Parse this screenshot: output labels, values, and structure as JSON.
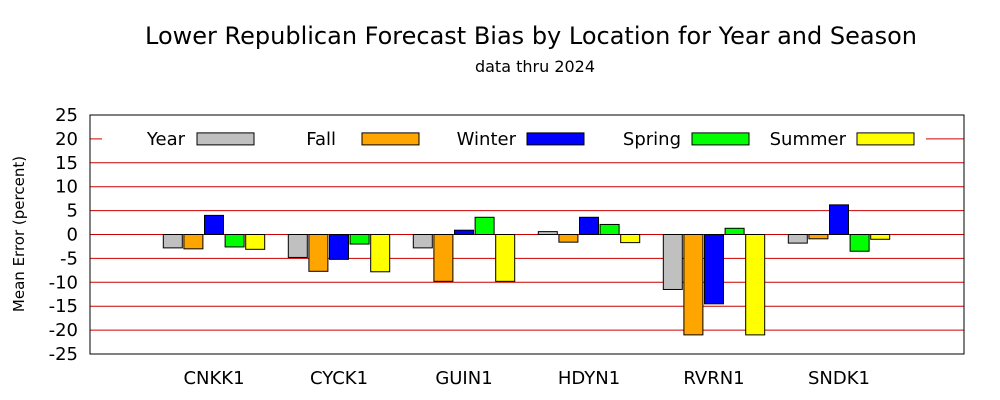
{
  "chart_data": {
    "type": "bar",
    "title": "Lower Republican Forecast Bias by Location for Year and Season",
    "subtitle": "data thru 2024",
    "ylabel": "Mean Error (percent)",
    "xlabel": "",
    "ylim": [
      -25,
      25
    ],
    "yticks": [
      25,
      20,
      15,
      10,
      5,
      0,
      -5,
      -10,
      -15,
      -20,
      -25
    ],
    "grid": true,
    "legend_position": "top",
    "categories": [
      "CNKK1",
      "CYCK1",
      "GUIN1",
      "HDYN1",
      "RVRN1",
      "SNDK1"
    ],
    "series": [
      {
        "name": "Year",
        "color": "#c0c0c0",
        "values": [
          -2.8,
          -4.8,
          -2.8,
          0.6,
          -11.5,
          -1.8
        ]
      },
      {
        "name": "Fall",
        "color": "#ffa500",
        "values": [
          -3.0,
          -7.7,
          -9.8,
          -1.6,
          -21.0,
          -0.9
        ]
      },
      {
        "name": "Winter",
        "color": "#0000ff",
        "values": [
          4.0,
          -5.2,
          0.9,
          3.6,
          -14.5,
          6.2
        ]
      },
      {
        "name": "Spring",
        "color": "#00ff00",
        "values": [
          -2.6,
          -2.0,
          3.6,
          2.1,
          1.3,
          -3.5
        ]
      },
      {
        "name": "Summer",
        "color": "#ffff00",
        "values": [
          -3.1,
          -7.8,
          -9.8,
          -1.7,
          -21.0,
          -1.0
        ]
      }
    ],
    "gridline_color": "#cc0000"
  }
}
